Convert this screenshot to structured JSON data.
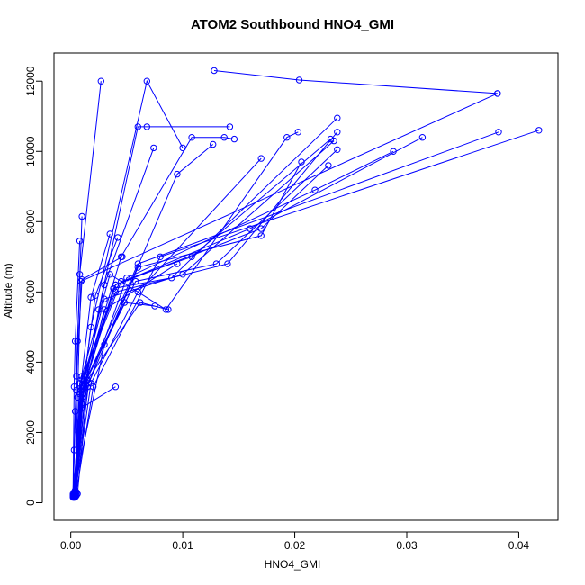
{
  "chart_data": {
    "type": "line",
    "title": "ATOM2 Southbound HNO4_GMI",
    "xlabel": "HNO4_GMI",
    "ylabel": "Altitude (m)",
    "xlim": [
      -0.0015,
      0.0435
    ],
    "ylim": [
      -500,
      12800
    ],
    "x_ticks": [
      0.0,
      0.01,
      0.02,
      0.03,
      0.04
    ],
    "x_tick_labels": [
      "0.00",
      "0.01",
      "0.02",
      "0.03",
      "0.04"
    ],
    "y_ticks": [
      0,
      2000,
      4000,
      6000,
      8000,
      10000,
      12000
    ],
    "y_tick_labels": [
      "0",
      "2000",
      "4000",
      "6000",
      "8000",
      "10000",
      "12000"
    ],
    "color": "#0000ff",
    "marker": "open-circle",
    "grid": false,
    "series": [
      {
        "x": [
          0.0002,
          0.0003,
          0.0005,
          0.0008,
          0.0027
        ],
        "y": [
          200,
          1500,
          3200,
          6500,
          12000
        ]
      },
      {
        "x": [
          0.0003,
          0.0007,
          0.0012,
          0.0018,
          0.0068,
          0.01
        ],
        "y": [
          150,
          2000,
          3500,
          5000,
          12000,
          10100
        ]
      },
      {
        "x": [
          0.0128,
          0.0204,
          0.0381
        ],
        "y": [
          12300,
          12030,
          11650
        ]
      },
      {
        "x": [
          0.0004,
          0.0006,
          0.0009,
          0.0381
        ],
        "y": [
          300,
          3000,
          6300,
          11650
        ]
      },
      {
        "x": [
          0.0004,
          0.001,
          0.0025,
          0.006,
          0.0068,
          0.0142
        ],
        "y": [
          350,
          2800,
          5500,
          10700,
          10700,
          10700
        ]
      },
      {
        "x": [
          0.0005,
          0.0011,
          0.003,
          0.0074
        ],
        "y": [
          250,
          3100,
          6200,
          10100
        ]
      },
      {
        "x": [
          0.0002,
          0.003,
          0.0095,
          0.0127
        ],
        "y": [
          200,
          4500,
          9350,
          10200
        ]
      },
      {
        "x": [
          0.0003,
          0.001,
          0.0045,
          0.0108,
          0.0137,
          0.0146
        ],
        "y": [
          150,
          3300,
          7000,
          10400,
          10400,
          10350
        ]
      },
      {
        "x": [
          0.0005,
          0.001,
          0.0035,
          0.0085,
          0.0193,
          0.0203
        ],
        "y": [
          200,
          3600,
          6500,
          5500,
          10400,
          10550
        ]
      },
      {
        "x": [
          0.0004,
          0.0012,
          0.0038,
          0.009,
          0.0238
        ],
        "y": [
          180,
          3300,
          6100,
          6400,
          10950
        ]
      },
      {
        "x": [
          0.0003,
          0.0008,
          0.004,
          0.014,
          0.0238
        ],
        "y": [
          220,
          3400,
          6000,
          6800,
          10550
        ]
      },
      {
        "x": [
          0.0004,
          0.0009,
          0.003,
          0.01,
          0.0235
        ],
        "y": [
          160,
          3200,
          5800,
          6500,
          10300
        ]
      },
      {
        "x": [
          0.0002,
          0.001,
          0.0045,
          0.0108,
          0.0232
        ],
        "y": [
          180,
          3500,
          6300,
          7000,
          10350
        ]
      },
      {
        "x": [
          0.0003,
          0.0011,
          0.0058,
          0.013,
          0.0238
        ],
        "y": [
          200,
          3300,
          6300,
          6800,
          10050
        ]
      },
      {
        "x": [
          0.0005,
          0.0012,
          0.004,
          0.017,
          0.023
        ],
        "y": [
          300,
          3600,
          6200,
          7800,
          9600
        ]
      },
      {
        "x": [
          0.0006,
          0.0015,
          0.005,
          0.0218,
          0.0288
        ],
        "y": [
          250,
          3300,
          6400,
          8900,
          10000
        ]
      },
      {
        "x": [
          0.0004,
          0.0016,
          0.006,
          0.017,
          0.0206
        ],
        "y": [
          300,
          3400,
          6700,
          7600,
          9700
        ]
      },
      {
        "x": [
          0.0003,
          0.0012,
          0.004,
          0.016,
          0.0314
        ],
        "y": [
          200,
          3300,
          6200,
          7800,
          10400
        ]
      },
      {
        "x": [
          0.0004,
          0.0014,
          0.006,
          0.0382
        ],
        "y": [
          160,
          3500,
          6800,
          10550
        ]
      },
      {
        "x": [
          0.0005,
          0.002,
          0.008,
          0.0418
        ],
        "y": [
          300,
          3300,
          7000,
          10600
        ]
      },
      {
        "x": [
          0.0004,
          0.0018,
          0.006,
          0.017
        ],
        "y": [
          250,
          3400,
          6000,
          9800
        ]
      },
      {
        "x": [
          0.0003,
          0.001,
          0.003,
          0.0095
        ],
        "y": [
          180,
          3000,
          5500,
          6800
        ]
      },
      {
        "x": [
          0.0004,
          0.0012,
          0.0022,
          0.0042
        ],
        "y": [
          200,
          3500,
          5900,
          7550
        ]
      },
      {
        "x": [
          0.0003,
          0.0008,
          0.0018,
          0.0035
        ],
        "y": [
          250,
          3100,
          5850,
          7650
        ]
      },
      {
        "x": [
          0.0002,
          0.0005,
          0.001,
          0.0046
        ],
        "y": [
          150,
          3600,
          6350,
          7000
        ]
      },
      {
        "x": [
          0.0002,
          0.0004,
          0.0006,
          0.001
        ],
        "y": [
          200,
          2600,
          4600,
          8150
        ]
      },
      {
        "x": [
          0.0002,
          0.0003,
          0.0004,
          0.0008
        ],
        "y": [
          250,
          3300,
          4600,
          7450
        ]
      },
      {
        "x": [
          0.0003,
          0.001,
          0.004
        ],
        "y": [
          300,
          2700,
          3300
        ]
      },
      {
        "x": [
          0.0004,
          0.0012,
          0.0048,
          0.0075
        ],
        "y": [
          200,
          3400,
          5700,
          5600
        ]
      },
      {
        "x": [
          0.0003,
          0.0015,
          0.0062,
          0.0087
        ],
        "y": [
          180,
          3500,
          5700,
          5500
        ]
      }
    ]
  }
}
